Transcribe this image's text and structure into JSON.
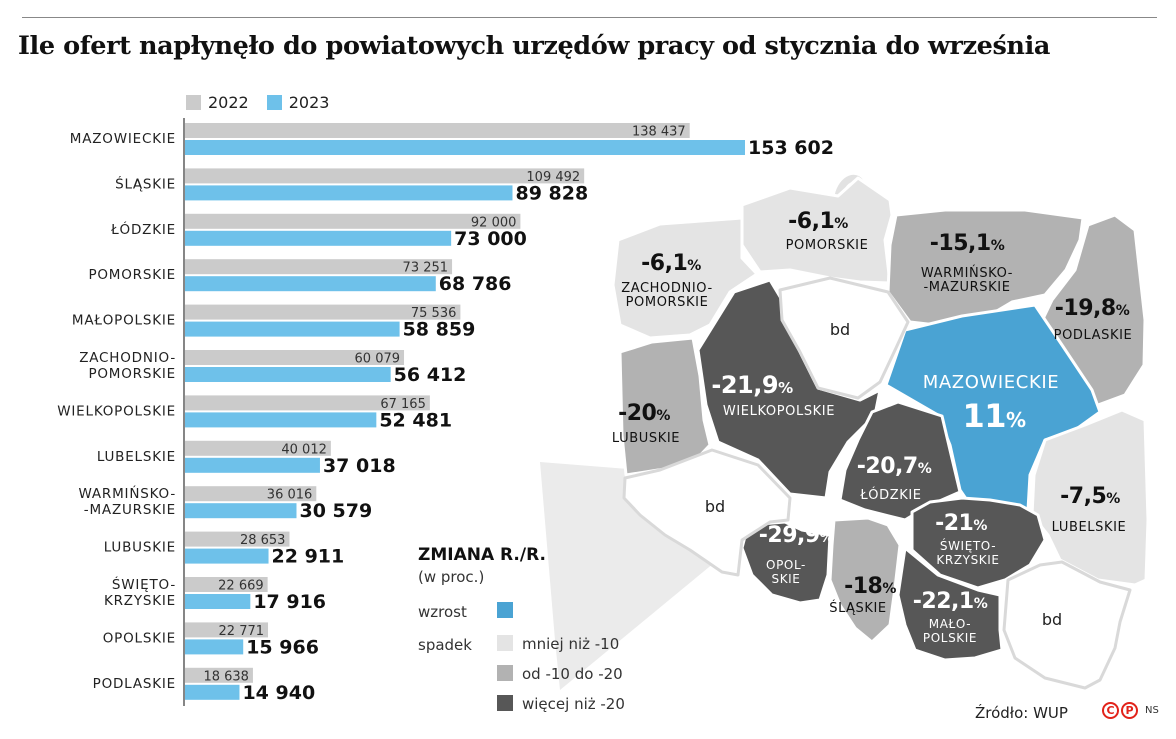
{
  "title": "Ile ofert napłynęło do powiatowych urzędów pracy od stycznia do września",
  "colors": {
    "y2022": "#cbcbcb",
    "y2023": "#6ec1ea",
    "wzrost": "#4aa3d3",
    "light": "#e4e4e4",
    "mid": "#b2b2b2",
    "dark": "#575757",
    "bd": "#ffffff"
  },
  "chart_data": {
    "type": "bar",
    "orientation": "horizontal",
    "legend": [
      "2022",
      "2023"
    ],
    "categories": [
      "MAZOWIECKIE",
      "ŚLĄSKIE",
      "ŁÓDZKIE",
      "POMORSKIE",
      "MAŁOPOLSKIE",
      "ZACHODNIO-\nPOMORSKIE",
      "WIELKOPOLSKIE",
      "LUBELSKIE",
      "WARMIŃSKO-\n-MAZURSKIE",
      "LUBUSKIE",
      "ŚWIĘTO-\nKRZYSKIE",
      "OPOLSKIE",
      "PODLASKIE"
    ],
    "series": [
      {
        "name": "2022",
        "values": [
          138437,
          109492,
          92000,
          73251,
          75536,
          60079,
          67165,
          40012,
          36016,
          28653,
          22669,
          22771,
          18638
        ],
        "labels": [
          "138 437",
          "109 492",
          "92 000",
          "73 251",
          "75 536",
          "60 079",
          "67 165",
          "40 012",
          "36 016",
          "28 653",
          "22 669",
          "22 771",
          "18 638"
        ]
      },
      {
        "name": "2023",
        "values": [
          153602,
          89828,
          73000,
          68786,
          58859,
          56412,
          52481,
          37018,
          30579,
          22911,
          17916,
          15966,
          14940
        ],
        "labels": [
          "153 602",
          "89 828",
          "73 000",
          "68 786",
          "58 859",
          "56 412",
          "52 481",
          "37 018",
          "30 579",
          "22 911",
          "17 916",
          "15 966",
          "14 940"
        ]
      }
    ]
  },
  "map": {
    "title": "ZMIANA R./R.",
    "subtitle": "(w proc.)",
    "wzrost_label": "wzrost",
    "spadek_label": "spadek",
    "scale": [
      "mniej niż -10",
      "od -10 do -20",
      "więcej niż -20"
    ],
    "bd_label": "bd",
    "regions": [
      {
        "id": "pomorskie",
        "value": "-6,1",
        "label": "POMORSKIE",
        "class": "light"
      },
      {
        "id": "zachodniopomorskie",
        "value": "-6,1",
        "label": "ZACHODNIO-\nPOMORSKIE",
        "class": "light"
      },
      {
        "id": "warminsko-mazurskie",
        "value": "-15,1",
        "label": "WARMIŃSKO-\n-MAZURSKIE",
        "class": "mid"
      },
      {
        "id": "podlaskie",
        "value": "-19,8",
        "label": "PODLASKIE",
        "class": "mid"
      },
      {
        "id": "mazowieckie",
        "value": "11",
        "label": "MAZOWIECKIE",
        "class": "wzrost"
      },
      {
        "id": "wielkopolskie",
        "value": "-21,9",
        "label": "WIELKOPOLSKIE",
        "class": "dark"
      },
      {
        "id": "lubuskie",
        "value": "-20",
        "label": "LUBUSKIE",
        "class": "mid"
      },
      {
        "id": "lodzkie",
        "value": "-20,7",
        "label": "ŁÓDZKIE",
        "class": "dark"
      },
      {
        "id": "lubelskie",
        "value": "-7,5",
        "label": "LUBELSKIE",
        "class": "light"
      },
      {
        "id": "opolskie",
        "value": "-29,9",
        "label": "OPOL-\nSKIE",
        "class": "dark"
      },
      {
        "id": "swietokrzyskie",
        "value": "-21",
        "label": "ŚWIĘTO-\nKRZYSKIE",
        "class": "dark"
      },
      {
        "id": "slaskie",
        "value": "-18",
        "label": "ŚLĄSKIE",
        "class": "mid"
      },
      {
        "id": "malopolskie",
        "value": "-22,1",
        "label": "MAŁO-\nPOLSKIE",
        "class": "dark"
      },
      {
        "id": "kujawsko-pomorskie",
        "value": "bd",
        "label": "",
        "class": "bd"
      },
      {
        "id": "dolnoslaskie",
        "value": "bd",
        "label": "",
        "class": "bd"
      },
      {
        "id": "podkarpackie",
        "value": "bd",
        "label": "",
        "class": "bd"
      }
    ],
    "percent": "%"
  },
  "source": "Źródło: WUP",
  "logo_letters": [
    "C",
    "P"
  ],
  "logo_suffix": "NS"
}
